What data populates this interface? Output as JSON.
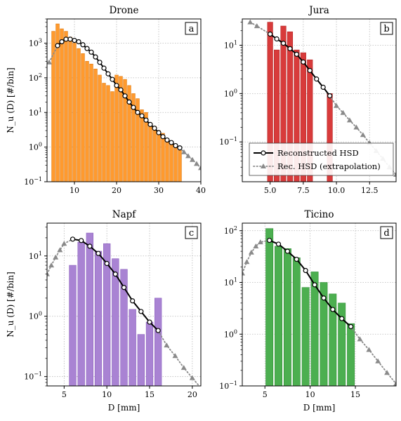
{
  "chart_data": [
    {
      "type": "bar",
      "title": "Drone",
      "panel_tag": "a",
      "xlabel": "",
      "ylabel": "N_u (D) [#/bin]",
      "yscale": "log",
      "xlim": [
        3.5,
        40
      ],
      "ylim": [
        0.1,
        5000
      ],
      "xticks": [
        10,
        20,
        30,
        40
      ],
      "xtick_labels": [
        "10",
        "20",
        "30",
        "40"
      ],
      "yticks": [
        0.1,
        1,
        10,
        100,
        1000
      ],
      "ytick_labels": [
        "10^-1",
        "10^0",
        "10^1",
        "10^2",
        "10^3"
      ],
      "bar_color": "#ff9a2e",
      "bar_edge": "#e07a10",
      "bar_width": 0.8,
      "bars": {
        "x": [
          5,
          6,
          7,
          8,
          9,
          10,
          11,
          12,
          13,
          14,
          15,
          16,
          17,
          18,
          19,
          20,
          21,
          22,
          23,
          24,
          25,
          26,
          27,
          28,
          29,
          30,
          31,
          32,
          33,
          34,
          35
        ],
        "values": [
          2200,
          3600,
          2600,
          2200,
          1500,
          1000,
          700,
          500,
          300,
          250,
          180,
          120,
          70,
          60,
          40,
          120,
          110,
          90,
          60,
          35,
          25,
          12,
          10,
          5,
          4,
          3,
          2.5,
          1.5,
          1.2,
          1.0,
          0.8
        ]
      },
      "series": [
        {
          "name": "Reconstructed HSD",
          "x": [
            6,
            7,
            8,
            9,
            10,
            11,
            12,
            13,
            14,
            15,
            16,
            17,
            18,
            19,
            20,
            21,
            22,
            23,
            24,
            25,
            26,
            27,
            28,
            29,
            30,
            31,
            32,
            33,
            34,
            35
          ],
          "values": [
            850,
            1100,
            1300,
            1300,
            1200,
            1100,
            900,
            700,
            550,
            400,
            280,
            190,
            130,
            90,
            60,
            45,
            30,
            20,
            14,
            10,
            8,
            6,
            4.5,
            3.5,
            2.6,
            2.0,
            1.6,
            1.35,
            1.1,
            0.95
          ]
        },
        {
          "name": "Rec. HSD (extrapolation)",
          "x": [
            4,
            36,
            37,
            38,
            39,
            40
          ],
          "values": [
            280,
            0.72,
            0.55,
            0.43,
            0.33,
            0.25
          ]
        }
      ],
      "grid": true
    },
    {
      "type": "bar",
      "title": "Jura",
      "panel_tag": "b",
      "xlabel": "",
      "ylabel": "",
      "yscale": "log",
      "xlim": [
        2.9,
        14.5
      ],
      "ylim": [
        0.015,
        35
      ],
      "xticks": [
        5,
        7.5,
        10,
        12.5
      ],
      "xtick_labels": [
        "5.0",
        "7.5",
        "10.0",
        "12.5"
      ],
      "yticks": [
        0.1,
        1,
        10
      ],
      "ytick_labels": [
        "10^-1",
        "10^0",
        "10^1"
      ],
      "bar_color": "#d83b3b",
      "bar_edge": "#b52525",
      "bar_width": 0.4,
      "bars": {
        "x": [
          5,
          5.5,
          6,
          6.5,
          7,
          7.5,
          8,
          9.5
        ],
        "values": [
          30,
          8,
          25,
          19,
          8,
          7,
          5,
          1
        ]
      },
      "series": [
        {
          "name": "Reconstructed HSD",
          "x": [
            5,
            5.5,
            6,
            6.5,
            7,
            7.5,
            8,
            8.5,
            9,
            9.5
          ],
          "values": [
            17,
            13.5,
            11,
            8.5,
            6.5,
            4.5,
            3,
            2,
            1.35,
            0.9
          ]
        },
        {
          "name": "Rec. HSD (extrapolation)",
          "x": [
            3.5,
            4,
            10,
            10.5,
            11,
            11.5,
            12,
            12.5,
            13,
            13.5,
            14,
            14.5
          ],
          "values": [
            30,
            25,
            0.56,
            0.4,
            0.28,
            0.2,
            0.14,
            0.095,
            0.065,
            0.045,
            0.03,
            0.021
          ]
        }
      ],
      "legend": {
        "placement": "lower-right",
        "entries": [
          "Reconstructed HSD",
          "Rec. HSD (extrapolation)"
        ]
      },
      "grid": true
    },
    {
      "type": "bar",
      "title": "Napf",
      "panel_tag": "c",
      "xlabel": "D [mm]",
      "ylabel": "N_u (D) [#/bin]",
      "yscale": "log",
      "xlim": [
        3,
        21
      ],
      "ylim": [
        0.07,
        35
      ],
      "xticks": [
        5,
        10,
        15,
        20
      ],
      "xtick_labels": [
        "5",
        "10",
        "15",
        "20"
      ],
      "yticks": [
        0.1,
        1,
        10
      ],
      "ytick_labels": [
        "10^-1",
        "10^0",
        "10^1"
      ],
      "bar_color": "#a983d3",
      "bar_edge": "#8c62bf",
      "bar_width": 0.8,
      "bars": {
        "x": [
          6,
          7,
          8,
          9,
          10,
          11,
          12,
          13,
          14,
          15,
          16
        ],
        "values": [
          7,
          17,
          24,
          12,
          16,
          9,
          6,
          1.3,
          0.5,
          0.8,
          2
        ]
      },
      "series": [
        {
          "name": "Reconstructed HSD",
          "x": [
            6,
            7,
            8,
            9,
            10,
            11,
            12,
            13,
            14,
            15,
            16
          ],
          "values": [
            19,
            18,
            14.5,
            11,
            7.5,
            5,
            3,
            1.8,
            1.2,
            0.8,
            0.58
          ]
        },
        {
          "name": "Rec. HSD (extrapolation)",
          "x": [
            3,
            3.5,
            4,
            4.5,
            5,
            17,
            18,
            19,
            20,
            21
          ],
          "values": [
            5,
            7,
            9.5,
            12.5,
            16,
            0.33,
            0.22,
            0.14,
            0.095,
            0.065
          ]
        }
      ],
      "grid": true
    },
    {
      "type": "bar",
      "title": "Ticino",
      "panel_tag": "d",
      "xlabel": "D [mm]",
      "ylabel": "",
      "yscale": "log",
      "xlim": [
        2.5,
        19.5
      ],
      "ylim": [
        0.1,
        140
      ],
      "xticks": [
        5,
        10,
        15
      ],
      "xtick_labels": [
        "5",
        "10",
        "15"
      ],
      "yticks": [
        0.1,
        1,
        10,
        100
      ],
      "ytick_labels": [
        "10^-1",
        "10^0",
        "10^1",
        "10^2"
      ],
      "bar_color": "#4caf50",
      "bar_edge": "#2f8f35",
      "bar_width": 0.8,
      "bars": {
        "x": [
          5.5,
          6.5,
          7.5,
          8.5,
          9.5,
          10.5,
          11.5,
          12.5,
          13.5,
          14.5
        ],
        "values": [
          110,
          50,
          45,
          30,
          8,
          16,
          10,
          6,
          4,
          1.6
        ]
      },
      "series": [
        {
          "name": "Reconstructed HSD",
          "x": [
            5.5,
            6.5,
            7.5,
            8.5,
            9.5,
            10.5,
            11.5,
            12.5,
            13.5,
            14.5
          ],
          "values": [
            65,
            55,
            40,
            28,
            17,
            9,
            5,
            3,
            2,
            1.4
          ]
        },
        {
          "name": "Rec. HSD (extrapolation)",
          "x": [
            2.5,
            3,
            3.5,
            4,
            4.5,
            15.5,
            16.5,
            17.5,
            18.5,
            19.5
          ],
          "values": [
            15,
            25,
            38,
            50,
            60,
            0.8,
            0.5,
            0.3,
            0.18,
            0.11
          ]
        }
      ],
      "grid": true
    }
  ]
}
